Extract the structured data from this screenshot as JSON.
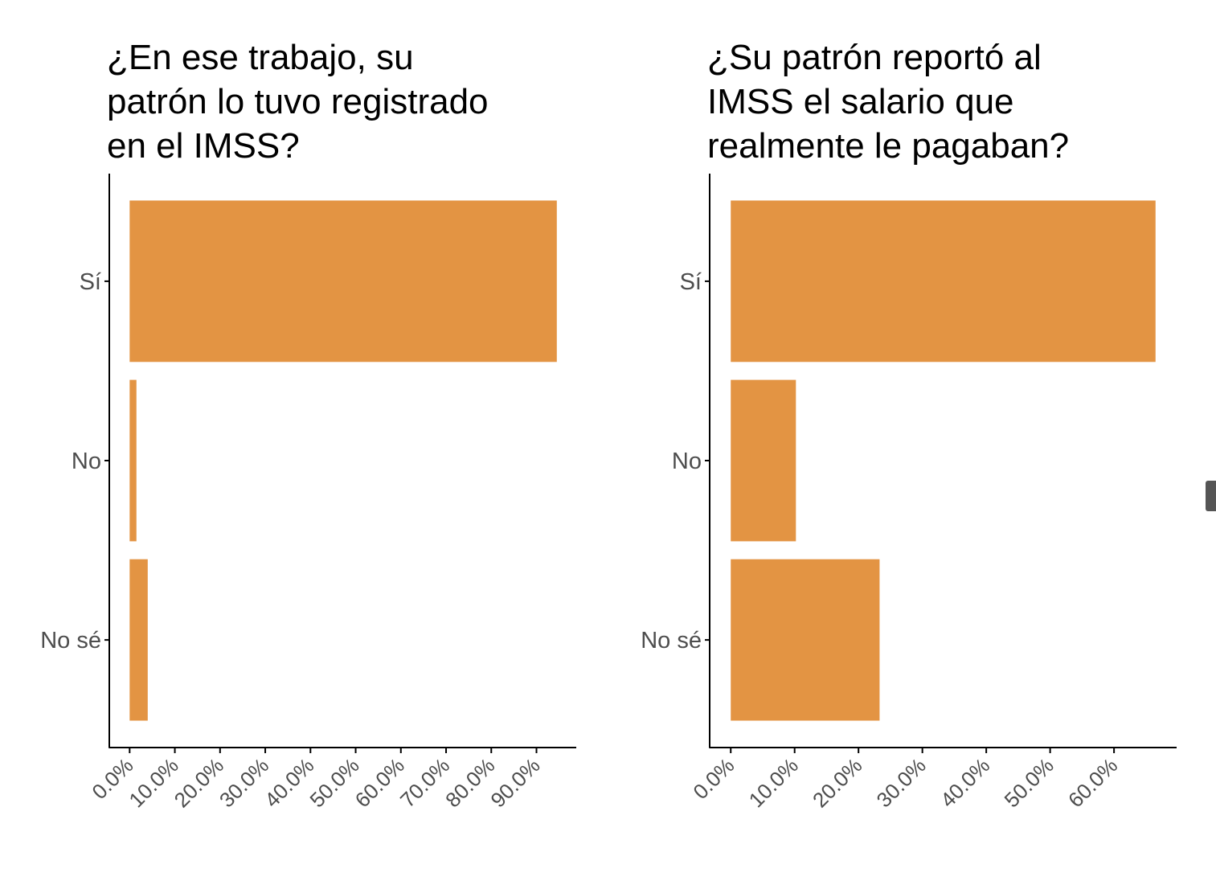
{
  "colors": {
    "bar": "#E39443",
    "axis": "#000000",
    "label": "#4d4d4d",
    "background": "#ffffff"
  },
  "chart_data": [
    {
      "type": "bar",
      "orientation": "horizontal",
      "title": "¿En ese trabajo, su\npatrón lo tuvo registrado\nen el IMSS?",
      "categories": [
        "Sí",
        "No",
        "No sé"
      ],
      "values": [
        94.5,
        1.5,
        4.0
      ],
      "unit": "%",
      "xlim": [
        -4.5,
        98.8
      ],
      "xticks": [
        0,
        10,
        20,
        30,
        40,
        50,
        60,
        70,
        80,
        90
      ],
      "xtick_labels": [
        "0.0%",
        "10.0%",
        "20.0%",
        "30.0%",
        "40.0%",
        "50.0%",
        "60.0%",
        "70.0%",
        "80.0%",
        "90.0%"
      ],
      "xlabel": "",
      "ylabel": "",
      "grid": false,
      "legend": "none"
    },
    {
      "type": "bar",
      "orientation": "horizontal",
      "title": "¿Su patrón reportó al\nIMSS el salario que\nrealmente le pagaban?",
      "categories": [
        "Sí",
        "No",
        "No sé"
      ],
      "values": [
        66.5,
        10.2,
        23.3
      ],
      "unit": "%",
      "xlim": [
        -3.3,
        69.8
      ],
      "xticks": [
        0,
        10,
        20,
        30,
        40,
        50,
        60
      ],
      "xtick_labels": [
        "0.0%",
        "10.0%",
        "20.0%",
        "30.0%",
        "40.0%",
        "50.0%",
        "60.0%"
      ],
      "xlabel": "",
      "ylabel": "",
      "grid": false,
      "legend": "none"
    }
  ]
}
